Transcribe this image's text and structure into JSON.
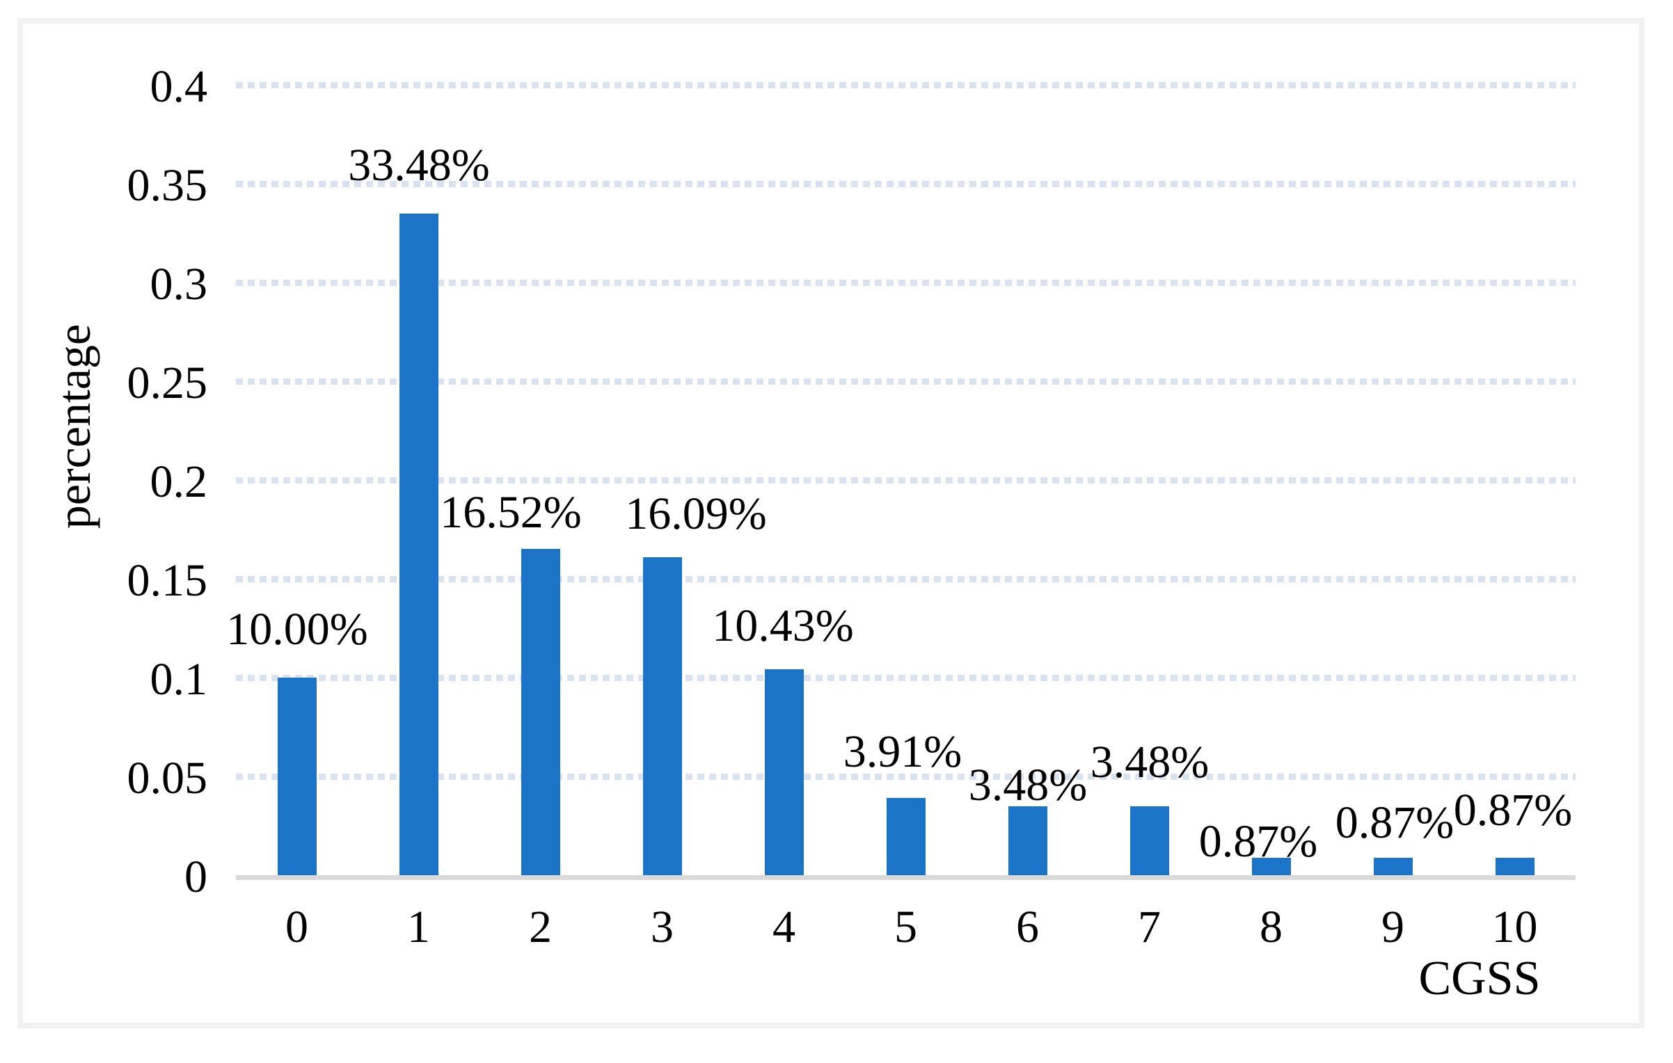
{
  "figure": {
    "background": "#FFFFFF",
    "frame_color": "#F1F1F1"
  },
  "chart_data": {
    "type": "bar",
    "title": "",
    "xlabel": "CGSS",
    "ylabel": "percentage",
    "categories": [
      "0",
      "1",
      "2",
      "3",
      "4",
      "5",
      "6",
      "7",
      "8",
      "9",
      "10"
    ],
    "values": [
      0.1,
      0.3348,
      0.1652,
      0.1609,
      0.1043,
      0.0391,
      0.0348,
      0.0348,
      0.0087,
      0.0087,
      0.0087
    ],
    "data_labels": [
      "10.00%",
      "33.48%",
      "16.52%",
      "16.09%",
      "10.43%",
      "3.91%",
      "3.48%",
      "3.48%",
      "0.87%",
      "0.87%",
      "0.87%"
    ],
    "y_ticks": [
      {
        "label": "0",
        "value": 0
      },
      {
        "label": "0.05",
        "value": 0.05
      },
      {
        "label": "0.1",
        "value": 0.1
      },
      {
        "label": "0.15",
        "value": 0.15
      },
      {
        "label": "0.2",
        "value": 0.2
      },
      {
        "label": "0.25",
        "value": 0.25
      },
      {
        "label": "0.3",
        "value": 0.3
      },
      {
        "label": "0.35",
        "value": 0.35
      },
      {
        "label": "0.4",
        "value": 0.4
      }
    ],
    "ylim": [
      0,
      0.4
    ],
    "legend_position": "none",
    "grid": "horizontal-dotted",
    "colors": {
      "bar": "#1B74C8",
      "gridline": "#D9E2F1",
      "axis_line": "#D9D9D9",
      "text": "#000000"
    }
  }
}
